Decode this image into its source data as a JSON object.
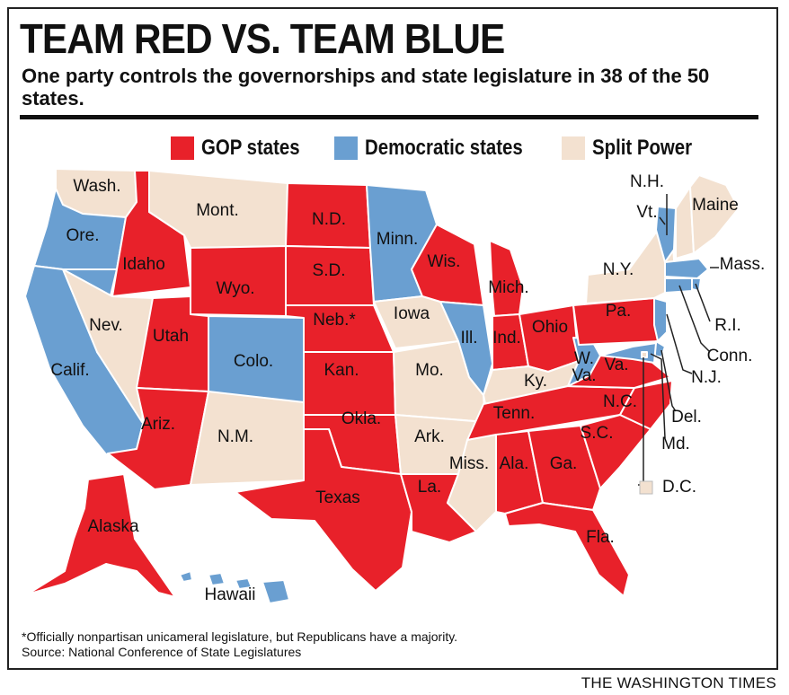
{
  "title": "TEAM RED VS. TEAM BLUE",
  "subtitle": "One party controls the governorships and state legislature in 38 of the 50 states.",
  "legend": [
    {
      "key": "gop",
      "label": "GOP states",
      "color": "#e8212a"
    },
    {
      "key": "dem",
      "label": "Democratic states",
      "color": "#6a9fd1"
    },
    {
      "key": "split",
      "label": "Split Power",
      "color": "#f3e1d0"
    }
  ],
  "states": [
    {
      "id": "wa",
      "label": "Wash.",
      "party": "split"
    },
    {
      "id": "or",
      "label": "Ore.",
      "party": "dem"
    },
    {
      "id": "ca",
      "label": "Calif.",
      "party": "dem"
    },
    {
      "id": "id",
      "label": "Idaho",
      "party": "gop"
    },
    {
      "id": "nv",
      "label": "Nev.",
      "party": "split"
    },
    {
      "id": "mt",
      "label": "Mont.",
      "party": "split"
    },
    {
      "id": "wy",
      "label": "Wyo.",
      "party": "gop"
    },
    {
      "id": "ut",
      "label": "Utah",
      "party": "gop"
    },
    {
      "id": "az",
      "label": "Ariz.",
      "party": "gop"
    },
    {
      "id": "co",
      "label": "Colo.",
      "party": "dem"
    },
    {
      "id": "nm",
      "label": "N.M.",
      "party": "split"
    },
    {
      "id": "nd",
      "label": "N.D.",
      "party": "gop"
    },
    {
      "id": "sd",
      "label": "S.D.",
      "party": "gop"
    },
    {
      "id": "ne",
      "label": "Neb.*",
      "party": "gop"
    },
    {
      "id": "ks",
      "label": "Kan.",
      "party": "gop"
    },
    {
      "id": "ok",
      "label": "Okla.",
      "party": "gop"
    },
    {
      "id": "tx",
      "label": "Texas",
      "party": "gop"
    },
    {
      "id": "mn",
      "label": "Minn.",
      "party": "dem"
    },
    {
      "id": "ia",
      "label": "Iowa",
      "party": "split"
    },
    {
      "id": "mo",
      "label": "Mo.",
      "party": "split"
    },
    {
      "id": "ar",
      "label": "Ark.",
      "party": "split"
    },
    {
      "id": "la",
      "label": "La.",
      "party": "gop"
    },
    {
      "id": "wi",
      "label": "Wis.",
      "party": "gop"
    },
    {
      "id": "il",
      "label": "Ill.",
      "party": "dem"
    },
    {
      "id": "mi",
      "label": "Mich.",
      "party": "gop"
    },
    {
      "id": "in",
      "label": "Ind.",
      "party": "gop"
    },
    {
      "id": "oh",
      "label": "Ohio",
      "party": "gop"
    },
    {
      "id": "ky",
      "label": "Ky.",
      "party": "split"
    },
    {
      "id": "tn",
      "label": "Tenn.",
      "party": "gop"
    },
    {
      "id": "ms",
      "label": "Miss.",
      "party": "split"
    },
    {
      "id": "al",
      "label": "Ala.",
      "party": "gop"
    },
    {
      "id": "ga",
      "label": "Ga.",
      "party": "gop"
    },
    {
      "id": "fl",
      "label": "Fla.",
      "party": "gop"
    },
    {
      "id": "sc",
      "label": "S.C.",
      "party": "gop"
    },
    {
      "id": "nc",
      "label": "N.C.",
      "party": "gop"
    },
    {
      "id": "va",
      "label": "Va.",
      "party": "gop"
    },
    {
      "id": "wv",
      "label": "W. Va.",
      "party": "dem"
    },
    {
      "id": "pa",
      "label": "Pa.",
      "party": "gop"
    },
    {
      "id": "ny",
      "label": "N.Y.",
      "party": "split"
    },
    {
      "id": "vt",
      "label": "Vt.",
      "party": "dem"
    },
    {
      "id": "nh",
      "label": "N.H.",
      "party": "split"
    },
    {
      "id": "me",
      "label": "Maine",
      "party": "split"
    },
    {
      "id": "ma",
      "label": "Mass.",
      "party": "dem"
    },
    {
      "id": "ri",
      "label": "R.I.",
      "party": "dem"
    },
    {
      "id": "ct",
      "label": "Conn.",
      "party": "dem"
    },
    {
      "id": "nj",
      "label": "N.J.",
      "party": "dem"
    },
    {
      "id": "de",
      "label": "Del.",
      "party": "dem"
    },
    {
      "id": "md",
      "label": "Md.",
      "party": "dem"
    },
    {
      "id": "dc",
      "label": "D.C.",
      "party": "split"
    },
    {
      "id": "ak",
      "label": "Alaska",
      "party": "gop"
    },
    {
      "id": "hi",
      "label": "Hawaii",
      "party": "dem"
    }
  ],
  "footnote": "*Officially nonpartisan unicameral legislature, but Republicans have a majority.",
  "source": "Source: National Conference of State Legislatures",
  "credit": "THE WASHINGTON TIMES"
}
